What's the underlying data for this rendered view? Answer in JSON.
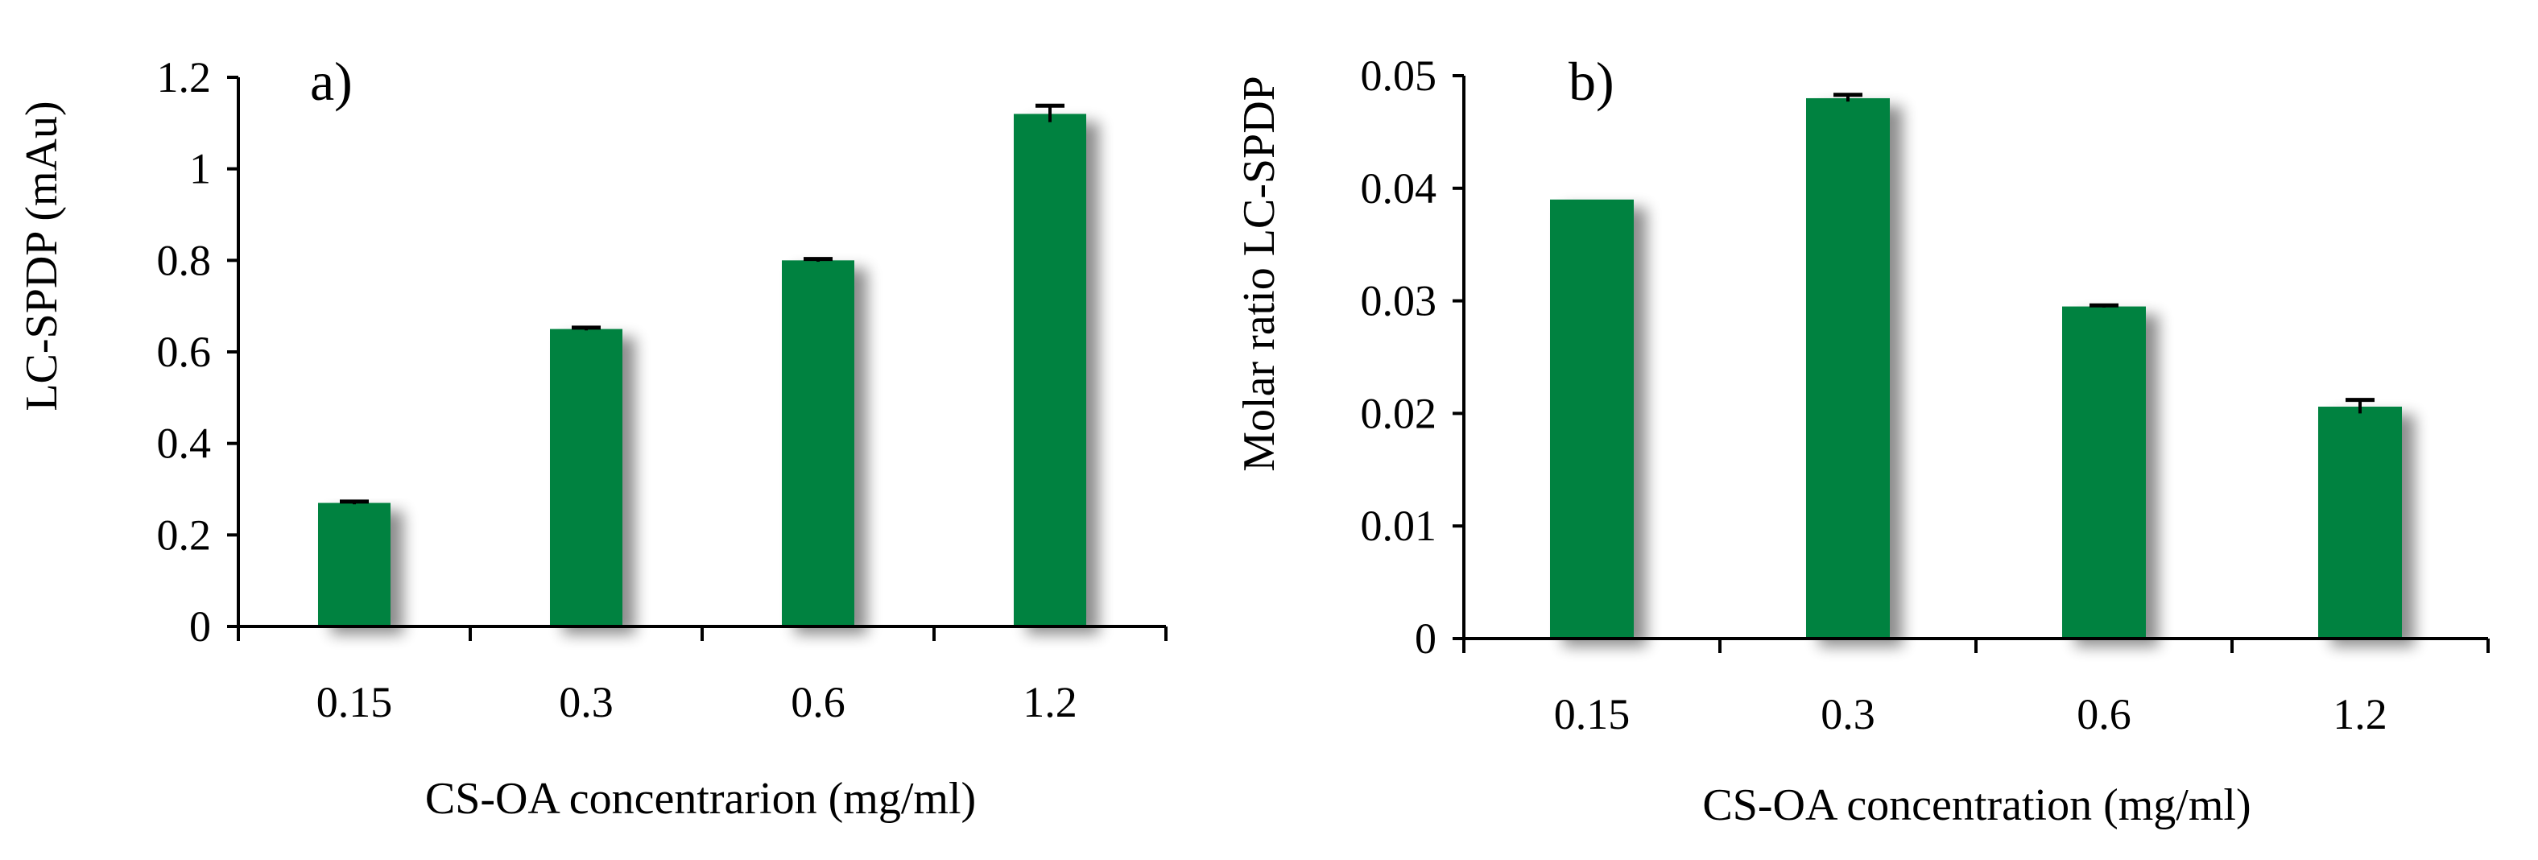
{
  "colors": {
    "bar": "#058240",
    "bar_shadow": "#9a9a9a",
    "axis": "#000000"
  },
  "chart_data": [
    {
      "type": "bar",
      "panel_label": "a)",
      "title": "",
      "xlabel": "CS-OA concentrarion (mg/ml)",
      "ylabel": "LC-SPDP (mAu)",
      "categories": [
        "0.15",
        "0.3",
        "0.6",
        "1.2"
      ],
      "values": [
        0.27,
        0.65,
        0.8,
        1.12
      ],
      "errors": [
        0.003,
        0.003,
        0.003,
        0.018
      ],
      "ylim": [
        0,
        1.2
      ],
      "yticks": [
        0,
        0.2,
        0.4,
        0.6,
        0.8,
        1.0,
        1.2
      ],
      "ytick_labels": [
        "0",
        "0.2",
        "0.4",
        "0.6",
        "0.8",
        "1",
        "1.2"
      ],
      "grid": false,
      "legend": "none"
    },
    {
      "type": "bar",
      "panel_label": "b)",
      "title": "",
      "xlabel": "CS-OA concentration (mg/ml)",
      "ylabel": "Molar ratio LC-SPDP",
      "categories": [
        "0.15",
        "0.3",
        "0.6",
        "1.2"
      ],
      "values": [
        0.039,
        0.048,
        0.0295,
        0.0206
      ],
      "errors": [
        0.0,
        0.0003,
        0.0001,
        0.0006
      ],
      "ylim": [
        0,
        0.05
      ],
      "yticks": [
        0,
        0.01,
        0.02,
        0.03,
        0.04,
        0.05
      ],
      "ytick_labels": [
        "0",
        "0.01",
        "0.02",
        "0.03",
        "0.04",
        "0.05"
      ],
      "grid": false,
      "legend": "none"
    }
  ]
}
